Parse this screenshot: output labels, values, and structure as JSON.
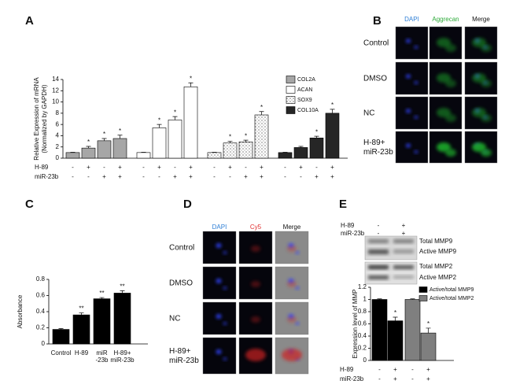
{
  "panel_labels": [
    "A",
    "B",
    "C",
    "D",
    "E"
  ],
  "panel_b": {
    "columns": [
      "DAPI",
      "Aggrecan",
      "Merge"
    ],
    "rows": [
      [
        "Control"
      ],
      [
        "DMSO"
      ],
      [
        "NC"
      ],
      [
        "H-89+",
        "miR-23b"
      ]
    ]
  },
  "panel_d": {
    "columns": [
      "DAPI",
      "Cy5",
      "Merge"
    ],
    "rows": [
      [
        "Control"
      ],
      [
        "DMSO"
      ],
      [
        "NC"
      ],
      [
        "H-89+",
        "miR-23b"
      ]
    ]
  },
  "panel_e_blot": {
    "conditions": [
      {
        "name": "H-89",
        "signs": [
          "-",
          "+"
        ]
      },
      {
        "name": "miR-23b",
        "signs": [
          "-",
          "+"
        ]
      }
    ],
    "bands": [
      "Total MMP9",
      "Active MMP9",
      "Total MMP2",
      "Active MMP2"
    ]
  },
  "chart_data": [
    {
      "type": "bar",
      "ylabel": [
        "Relative Expression of mRNA",
        "(Normalized by GAPDH)"
      ],
      "ylim": [
        0,
        14
      ],
      "yticks": [
        0,
        2,
        4,
        6,
        8,
        10,
        12,
        14
      ],
      "conditions": [
        {
          "name": "H-89",
          "signs": [
            "-",
            "+",
            "-",
            "+"
          ]
        },
        {
          "name": "miR-23b",
          "signs": [
            "-",
            "-",
            "+",
            "+"
          ]
        }
      ],
      "series": [
        {
          "name": "COL2A",
          "color": "#a6a6a6",
          "values": [
            1,
            1.8,
            3.1,
            3.5
          ],
          "errors": [
            0.05,
            0.3,
            0.4,
            0.6
          ],
          "stars": [
            null,
            "*",
            "*",
            "*"
          ]
        },
        {
          "name": "ACAN",
          "color": "#ffffff",
          "values": [
            1,
            5.4,
            6.8,
            12.7
          ],
          "errors": [
            0.05,
            0.6,
            0.6,
            0.7
          ],
          "stars": [
            null,
            "*",
            "*",
            "*"
          ]
        },
        {
          "name": "SOX9",
          "color": "#ffffff",
          "hatch": "dots",
          "values": [
            1,
            2.7,
            2.9,
            7.7
          ],
          "errors": [
            0.05,
            0.3,
            0.3,
            0.6
          ],
          "stars": [
            null,
            "*",
            "*",
            "*"
          ]
        },
        {
          "name": "COL10A",
          "color": "#262626",
          "values": [
            1,
            1.9,
            3.6,
            8.0
          ],
          "errors": [
            0.05,
            0.2,
            0.3,
            0.7
          ],
          "stars": [
            null,
            null,
            "*",
            "*"
          ]
        }
      ]
    },
    {
      "type": "bar",
      "ylabel": [
        "Absorbance"
      ],
      "ylim": [
        0,
        0.8
      ],
      "yticks": [
        0,
        0.2,
        0.4,
        0.6,
        0.8
      ],
      "categories": [
        [
          "Control"
        ],
        [
          "H-89"
        ],
        [
          "miR",
          "-23b"
        ],
        [
          "H-89+",
          "miR-23b"
        ]
      ],
      "color": "#000000",
      "values": [
        0.18,
        0.36,
        0.56,
        0.63
      ],
      "errors": [
        0.01,
        0.025,
        0.015,
        0.03
      ],
      "stars": [
        null,
        "**",
        "**",
        "**"
      ]
    },
    {
      "type": "bar",
      "ylabel": [
        "Expression level of MMP"
      ],
      "ylim": [
        0,
        1.2
      ],
      "yticks": [
        0,
        0.2,
        0.4,
        0.6,
        0.8,
        1,
        1.2
      ],
      "conditions": [
        {
          "name": "H-89",
          "signs": [
            "-",
            "+"
          ]
        },
        {
          "name": "miR-23b",
          "signs": [
            "-",
            "+"
          ]
        }
      ],
      "series": [
        {
          "name": "Active/total MMP9",
          "color": "#000000",
          "values": [
            1,
            0.65
          ],
          "errors": [
            0.01,
            0.06
          ],
          "stars": [
            null,
            "*"
          ]
        },
        {
          "name": "Active/total  MMP2",
          "color": "#7f7f7f",
          "values": [
            1,
            0.45
          ],
          "errors": [
            0.01,
            0.08
          ],
          "stars": [
            null,
            "*"
          ]
        }
      ]
    }
  ]
}
